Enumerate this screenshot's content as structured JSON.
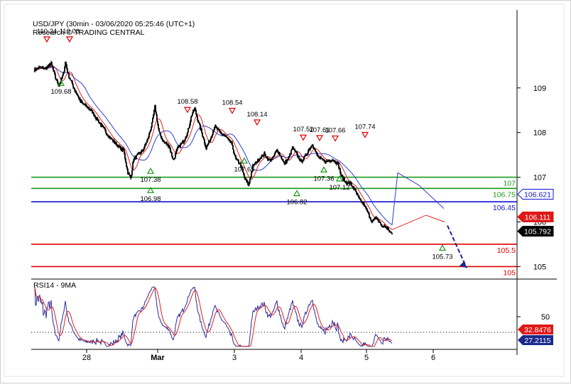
{
  "header": {
    "title": "USD/JPY (30min - 03/06/2020 05:25:46 (UTC+1)",
    "source": "Research © TRADING CENTRAL"
  },
  "colors": {
    "candle": "#000000",
    "ma_fast": "#e02020",
    "ma_slow": "#2a3fd0",
    "support": "#1a9a1a",
    "pivot": "#1010d0",
    "target": "#e00000",
    "rsi": "#2a2a9a",
    "rsi_ma": "#e02020",
    "arrow": "#1a2a8a"
  },
  "chart_data": [
    {
      "type": "candlestick",
      "title": "USD/JPY (30min - 03/06/2020 05:25:46 (UTC+1)",
      "ylim": [
        104.8,
        110.65
      ],
      "y_ticks": [
        105,
        106,
        107,
        108,
        109
      ],
      "x_ticks": [
        "28",
        "Mar",
        "3",
        "4",
        "5",
        "6"
      ],
      "price_path": [
        [
          0,
          109.4
        ],
        [
          8,
          109.46
        ],
        [
          16,
          109.43
        ],
        [
          24,
          109.55
        ],
        [
          30,
          109.22
        ],
        [
          35,
          109.05
        ],
        [
          41,
          109.3
        ],
        [
          44,
          109.58
        ],
        [
          48,
          109.3
        ],
        [
          56,
          109.0
        ],
        [
          65,
          108.7
        ],
        [
          80,
          108.5
        ],
        [
          95,
          108.15
        ],
        [
          106,
          107.9
        ],
        [
          118,
          107.7
        ],
        [
          126,
          107.6
        ],
        [
          132,
          107.1
        ],
        [
          136,
          106.98
        ],
        [
          140,
          107.4
        ],
        [
          146,
          107.5
        ],
        [
          153,
          107.6
        ],
        [
          160,
          107.85
        ],
        [
          166,
          108.2
        ],
        [
          170,
          108.58
        ],
        [
          176,
          108.0
        ],
        [
          182,
          107.8
        ],
        [
          190,
          107.7
        ],
        [
          196,
          107.38
        ],
        [
          202,
          107.65
        ],
        [
          210,
          107.8
        ],
        [
          216,
          108.0
        ],
        [
          222,
          108.4
        ],
        [
          226,
          108.54
        ],
        [
          232,
          108.2
        ],
        [
          238,
          107.9
        ],
        [
          242,
          107.65
        ],
        [
          248,
          107.85
        ],
        [
          254,
          108.14
        ],
        [
          262,
          108.0
        ],
        [
          270,
          107.9
        ],
        [
          278,
          107.75
        ],
        [
          284,
          107.4
        ],
        [
          290,
          107.3
        ],
        [
          296,
          107.0
        ],
        [
          302,
          106.82
        ],
        [
          308,
          107.25
        ],
        [
          316,
          107.4
        ],
        [
          324,
          107.52
        ],
        [
          330,
          107.38
        ],
        [
          336,
          107.42
        ],
        [
          342,
          107.61
        ],
        [
          348,
          107.45
        ],
        [
          352,
          107.3
        ],
        [
          358,
          107.42
        ],
        [
          364,
          107.66
        ],
        [
          370,
          107.5
        ],
        [
          376,
          107.35
        ],
        [
          380,
          107.42
        ],
        [
          386,
          107.6
        ],
        [
          392,
          107.74
        ],
        [
          398,
          107.5
        ],
        [
          404,
          107.4
        ],
        [
          412,
          107.35
        ],
        [
          420,
          107.4
        ],
        [
          428,
          107.3
        ],
        [
          432,
          107.05
        ],
        [
          438,
          106.9
        ],
        [
          446,
          106.85
        ],
        [
          452,
          106.7
        ],
        [
          458,
          106.5
        ],
        [
          464,
          106.4
        ],
        [
          470,
          106.2
        ],
        [
          476,
          106.0
        ],
        [
          482,
          106.1
        ],
        [
          486,
          106.0
        ],
        [
          490,
          105.9
        ],
        [
          494,
          105.9
        ],
        [
          500,
          105.8
        ],
        [
          504,
          105.73
        ]
      ],
      "labels_high": [
        "110.24",
        "110.03",
        "108.58",
        "108.54",
        "108.14",
        "107.52",
        "107.61",
        "107.66",
        "107.74"
      ],
      "labels_low": [
        "109.68",
        "107.38",
        "107.65",
        "106.98",
        "106.82",
        "107.36",
        "107.12",
        "105.73"
      ],
      "levels": [
        {
          "value": 107,
          "label": "107",
          "kind": "support"
        },
        {
          "value": 106.75,
          "label": "106.75",
          "kind": "support"
        },
        {
          "value": 106.45,
          "label": "106.45",
          "kind": "pivot"
        },
        {
          "value": 105.5,
          "label": "105.5",
          "kind": "target"
        },
        {
          "value": 105,
          "label": "105",
          "kind": "target"
        }
      ],
      "current_tags": [
        {
          "value": 106.621,
          "label": "106.621"
        },
        {
          "value": 106.111,
          "label": "106.111"
        },
        {
          "value": 105.792,
          "label": "105.792"
        }
      ]
    },
    {
      "type": "line",
      "title": "RSI14 - 9MA",
      "ylim": [
        10,
        90
      ],
      "y_ticks": [
        50
      ],
      "current_tags": [
        {
          "value": 32.8476,
          "label": "32.8476"
        },
        {
          "value": 27.2115,
          "label": "27.2115"
        }
      ]
    }
  ]
}
